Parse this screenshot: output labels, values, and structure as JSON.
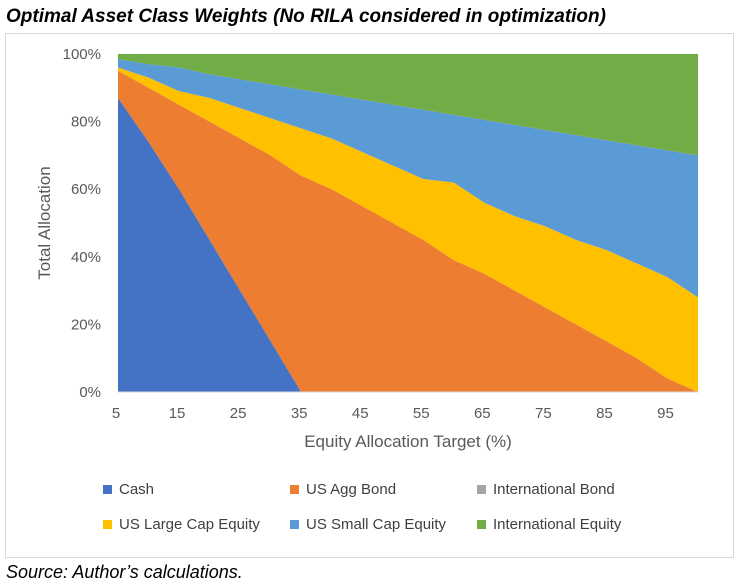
{
  "title": "Optimal Asset Class Weights (No RILA considered in optimization)",
  "source": "Source: Author’s calculations.",
  "chart_data": {
    "type": "area",
    "stacked": true,
    "title": "Optimal Asset Class Weights (No RILA considered in optimization)",
    "xlabel": "Equity Allocation Target (%)",
    "ylabel": "Total Allocation",
    "x": [
      5,
      10,
      15,
      20,
      25,
      30,
      35,
      40,
      45,
      50,
      55,
      60,
      65,
      70,
      75,
      80,
      85,
      90,
      95,
      100
    ],
    "xtick_labels": [
      "5",
      "15",
      "25",
      "35",
      "45",
      "55",
      "65",
      "75",
      "85",
      "95"
    ],
    "ytick_labels": [
      "0%",
      "20%",
      "40%",
      "60%",
      "80%",
      "100%"
    ],
    "ylim": [
      0,
      100
    ],
    "grid": false,
    "legend_position": "bottom",
    "series": [
      {
        "name": "Cash",
        "color": "#4472c4",
        "values": [
          87,
          74,
          60,
          45,
          30,
          15,
          0,
          0,
          0,
          0,
          0,
          0,
          0,
          0,
          0,
          0,
          0,
          0,
          0,
          0
        ]
      },
      {
        "name": "US Agg Bond",
        "color": "#ed7d31",
        "values": [
          8,
          16,
          25,
          35,
          45,
          55,
          64,
          60,
          55,
          50,
          45,
          39,
          35,
          30,
          25,
          20,
          15,
          10,
          4,
          0
        ]
      },
      {
        "name": "International Bond",
        "color": "#a5a5a5",
        "values": [
          0,
          0,
          0,
          0,
          0,
          0,
          0,
          0,
          0,
          0,
          0,
          0,
          0,
          0,
          0,
          0,
          0,
          0,
          0,
          0
        ]
      },
      {
        "name": "US Large Cap Equity",
        "color": "#ffc000",
        "values": [
          1,
          3,
          4,
          7,
          9,
          11,
          14,
          15,
          16,
          17,
          18,
          23,
          21,
          22,
          24,
          25,
          27,
          28,
          30,
          28
        ]
      },
      {
        "name": "US Small Cap Equity",
        "color": "#5b9bd5",
        "values": [
          2.5,
          4,
          7,
          7,
          8.5,
          10,
          11.5,
          13,
          15.5,
          18,
          20.5,
          20,
          24.5,
          27,
          28.5,
          31,
          32.5,
          35,
          37.5,
          42
        ]
      },
      {
        "name": "International Equity",
        "color": "#70ad47",
        "values": [
          1.5,
          3,
          4,
          6,
          7.5,
          9,
          10.5,
          12,
          13.5,
          15,
          16.5,
          18,
          19.5,
          21,
          22.5,
          24,
          25.5,
          27,
          28.5,
          30
        ]
      }
    ]
  }
}
